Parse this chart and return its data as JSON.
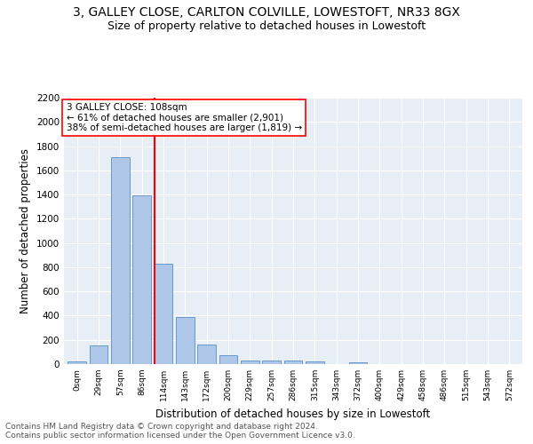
{
  "title1": "3, GALLEY CLOSE, CARLTON COLVILLE, LOWESTOFT, NR33 8GX",
  "title2": "Size of property relative to detached houses in Lowestoft",
  "xlabel": "Distribution of detached houses by size in Lowestoft",
  "ylabel": "Number of detached properties",
  "footnote": "Contains HM Land Registry data © Crown copyright and database right 2024.\nContains public sector information licensed under the Open Government Licence v3.0.",
  "bar_labels": [
    "0sqm",
    "29sqm",
    "57sqm",
    "86sqm",
    "114sqm",
    "143sqm",
    "172sqm",
    "200sqm",
    "229sqm",
    "257sqm",
    "286sqm",
    "315sqm",
    "343sqm",
    "372sqm",
    "400sqm",
    "429sqm",
    "458sqm",
    "486sqm",
    "515sqm",
    "543sqm",
    "572sqm"
  ],
  "bar_values": [
    20,
    155,
    1710,
    1390,
    830,
    390,
    165,
    70,
    30,
    28,
    27,
    20,
    0,
    18,
    0,
    0,
    0,
    0,
    0,
    0,
    0
  ],
  "bar_color": "#aec6e8",
  "bar_edge_color": "#5a8fc2",
  "vline_color": "red",
  "annotation_text": "3 GALLEY CLOSE: 108sqm\n← 61% of detached houses are smaller (2,901)\n38% of semi-detached houses are larger (1,819) →",
  "annotation_box_color": "white",
  "annotation_box_edge": "red",
  "ylim": [
    0,
    2200
  ],
  "yticks": [
    0,
    200,
    400,
    600,
    800,
    1000,
    1200,
    1400,
    1600,
    1800,
    2000,
    2200
  ],
  "bg_color": "#e8eef5",
  "title1_fontsize": 10,
  "title2_fontsize": 9,
  "xlabel_fontsize": 8.5,
  "ylabel_fontsize": 8.5,
  "annotation_fontsize": 7.5,
  "footnote_fontsize": 6.5
}
